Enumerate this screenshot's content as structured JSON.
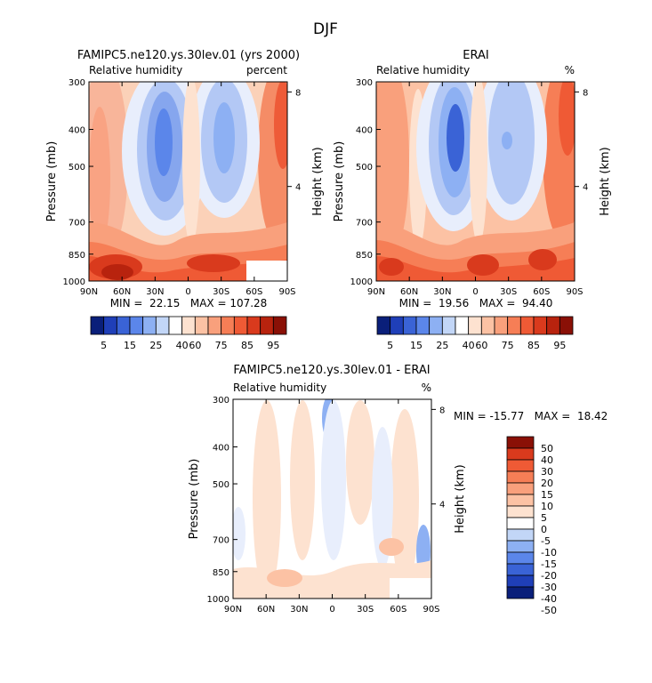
{
  "figure_title": "DJF",
  "palette": {
    "rh": [
      "#0a1f7a",
      "#1f3fb8",
      "#3a63d6",
      "#5b86ea",
      "#8db0f3",
      "#c2d6f7",
      "#ffffff",
      "#fde2d0",
      "#fcc2a4",
      "#f9a07c",
      "#f67e56",
      "#ef5a35",
      "#d93a1d",
      "#b8230e",
      "#8a1006"
    ],
    "diff": [
      "#0a1f7a",
      "#1f3fb8",
      "#3a63d6",
      "#5b86ea",
      "#8db0f3",
      "#c2d6f7",
      "#ffffff",
      "#fde2d0",
      "#fcc2a4",
      "#f9a07c",
      "#f67e56",
      "#ef5a35",
      "#d93a1d",
      "#8a1006"
    ]
  },
  "chart_data": [
    {
      "type": "heatmap",
      "title": "FAMIPC5.ne120.ys.30lev.01 (yrs 2000)",
      "subtitle_left": "Relative humidity",
      "subtitle_right": "percent",
      "ylabel": "Pressure (mb)",
      "ylabel_right": "Height (km)",
      "x_ticks": [
        "90N",
        "60N",
        "30N",
        "0",
        "30S",
        "60S",
        "90S"
      ],
      "y_ticks": [
        "300",
        "400",
        "500",
        "700",
        "850",
        "1000"
      ],
      "height_ticks": [
        "8",
        "4"
      ],
      "stats_text": "MIN =  22.15   MAX = 107.28",
      "min": 22.15,
      "max": 107.28,
      "colorbar_labels": [
        "5",
        "15",
        "25",
        "40",
        "60",
        "75",
        "85",
        "95"
      ]
    },
    {
      "type": "heatmap",
      "title": "ERAI",
      "subtitle_left": "Relative humidity",
      "subtitle_right": "%",
      "ylabel": "Pressure (mb)",
      "ylabel_right": "Height (km)",
      "x_ticks": [
        "90N",
        "60N",
        "30N",
        "0",
        "30S",
        "60S",
        "90S"
      ],
      "y_ticks": [
        "300",
        "400",
        "500",
        "700",
        "850",
        "1000"
      ],
      "height_ticks": [
        "8",
        "4"
      ],
      "stats_text": "MIN =  19.56   MAX =  94.40",
      "min": 19.56,
      "max": 94.4,
      "colorbar_labels": [
        "5",
        "15",
        "25",
        "40",
        "60",
        "75",
        "85",
        "95"
      ]
    },
    {
      "type": "heatmap",
      "title": "FAMIPC5.ne120.ys.30lev.01 - ERAI",
      "subtitle_left": "Relative humidity",
      "subtitle_right": "%",
      "ylabel": "Pressure (mb)",
      "ylabel_right": "Height (km)",
      "x_ticks": [
        "90N",
        "60N",
        "30N",
        "0",
        "30S",
        "60S",
        "90S"
      ],
      "y_ticks": [
        "300",
        "400",
        "500",
        "700",
        "850",
        "1000"
      ],
      "height_ticks": [
        "8",
        "4"
      ],
      "stats_text": "MIN = -15.77   MAX =  18.42",
      "min": -15.77,
      "max": 18.42,
      "colorbar_labels": [
        "50",
        "40",
        "30",
        "20",
        "15",
        "10",
        "5",
        "0",
        "-5",
        "-10",
        "-15",
        "-20",
        "-30",
        "-40",
        "-50"
      ]
    }
  ]
}
